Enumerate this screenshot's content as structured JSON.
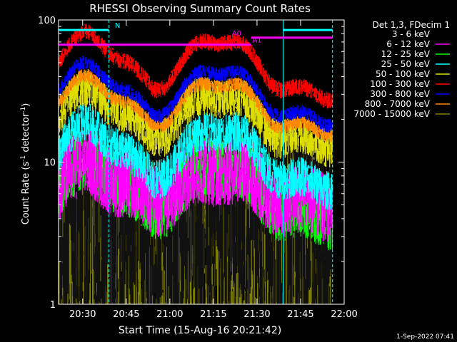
{
  "chart_data": {
    "type": "line",
    "title": "RHESSI Observing Summary Count Rates",
    "xlabel": "Start Time (15-Aug-16 20:21:42)",
    "ylabel_main": "Count Rate (s",
    "ylabel_sup1": "-1",
    "ylabel_mid": " detector",
    "ylabel_sup2": "-1",
    "ylabel_end": ")",
    "yscale": "log",
    "ylim": [
      1,
      100
    ],
    "xlim": [
      "20:21:42",
      "22:00:00"
    ],
    "xticks": [
      "20:30",
      "20:45",
      "21:00",
      "21:15",
      "21:30",
      "21:45",
      "22:00"
    ],
    "yticks": [
      "1",
      "10",
      "100"
    ],
    "legend_title": "Det 1,3, FDecim 1",
    "legend_position": "top-right",
    "series": [
      {
        "name": "3 - 6 keV",
        "color": "#000000",
        "base": 3.0,
        "amp": 1.8,
        "noise": 0.9
      },
      {
        "name": "6 - 12 keV",
        "color": "#ff00ff",
        "base": 5.2,
        "amp": 1.8,
        "noise": 0.25
      },
      {
        "name": "12 - 25 keV",
        "color": "#00ff00",
        "base": 4.4,
        "amp": 2.2,
        "noise": 0.22
      },
      {
        "name": "25 - 50 keV",
        "color": "#00ffff",
        "base": 7.0,
        "amp": 2.5,
        "noise": 0.14
      },
      {
        "name": "50 - 100 keV",
        "color": "#dddd00",
        "base": 14.0,
        "amp": 2.2,
        "noise": 0.14
      },
      {
        "name": "100 - 300 keV",
        "color": "#ff0000",
        "base": 30.0,
        "amp": 2.5,
        "noise": 0.06
      },
      {
        "name": "300 - 800 keV",
        "color": "#0000ff",
        "base": 20.0,
        "amp": 2.3,
        "noise": 0.05
      },
      {
        "name": "800 - 7000 keV",
        "color": "#ff8800",
        "base": 17.0,
        "amp": 2.2,
        "noise": 0.05
      },
      {
        "name": "7000 - 15000 keV",
        "color": "#808000",
        "base": 2.0,
        "amp": 1.6,
        "noise": 0.8
      }
    ],
    "flags": [
      {
        "label": "N",
        "color": "#00ffff",
        "ranges": [
          [
            "20:21:42",
            "20:39:00"
          ],
          [
            "21:39:00",
            "21:56:00"
          ]
        ],
        "value": 85
      },
      {
        "label": "A0",
        "color": "#ff00ff",
        "ranges": [
          [
            "21:28:00",
            "21:56:00"
          ]
        ],
        "value": 75
      },
      {
        "label": "A1",
        "color": "#ff00ff",
        "ranges": [
          [
            "20:21:42",
            "21:28:00"
          ]
        ],
        "value": 67
      }
    ],
    "grid": false
  },
  "timestamp": "1-Sep-2022 07:41"
}
